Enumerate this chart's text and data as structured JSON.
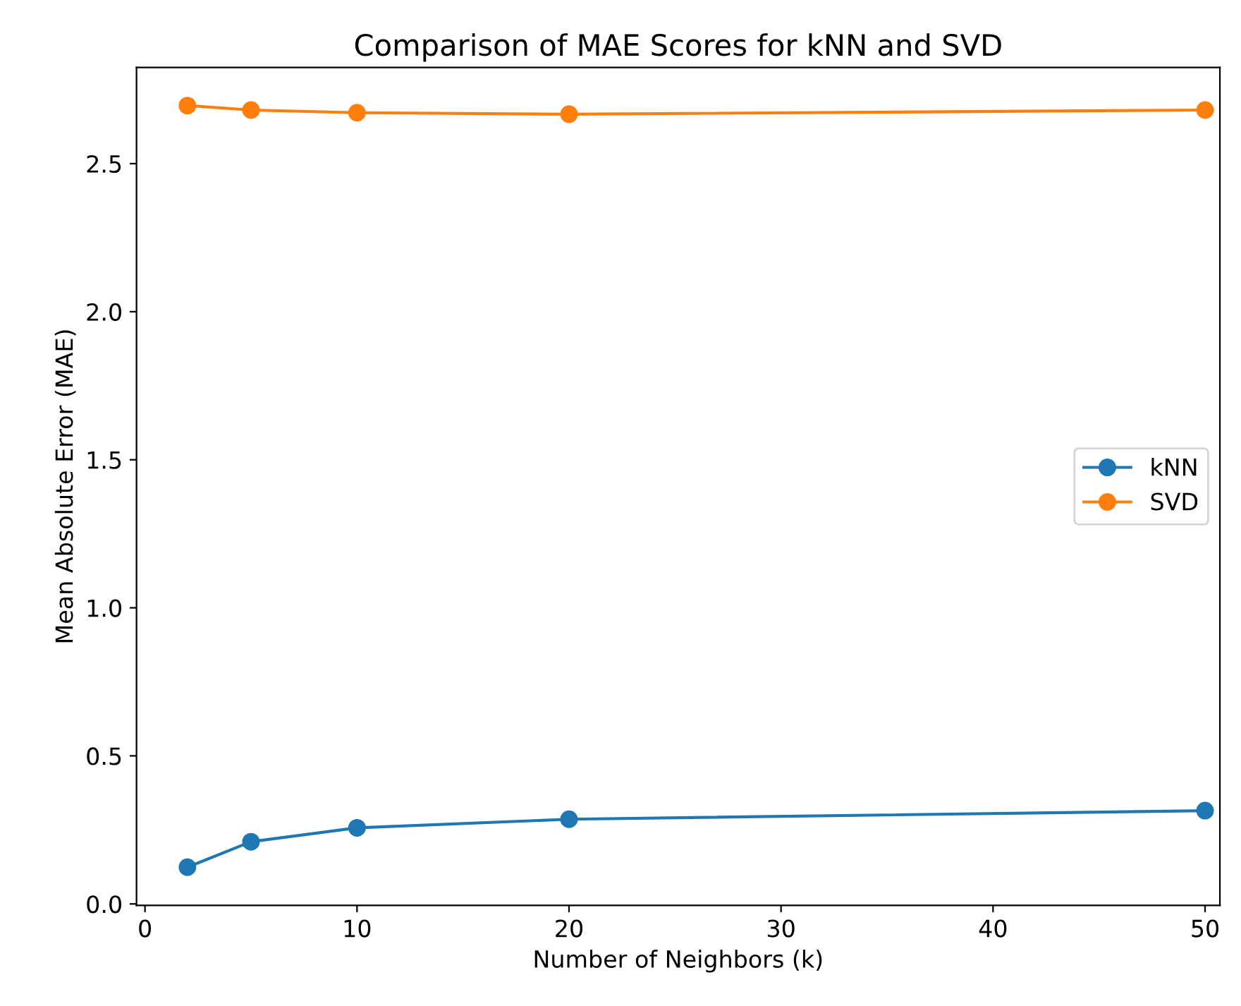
{
  "chart_data": {
    "type": "line",
    "title": "Comparison of MAE Scores for kNN and SVD",
    "xlabel": "Number of Neighbors (k)",
    "ylabel": "Mean Absolute Error (MAE)",
    "x": [
      2,
      5,
      10,
      20,
      50
    ],
    "series": [
      {
        "name": "kNN",
        "color": "#1f77b4",
        "values": [
          0.124,
          0.21,
          0.257,
          0.286,
          0.315
        ]
      },
      {
        "name": "SVD",
        "color": "#ff7f0e",
        "values": [
          2.696,
          2.681,
          2.672,
          2.667,
          2.681
        ]
      }
    ],
    "xlim": [
      -0.4,
      50.7
    ],
    "ylim": [
      -0.005,
      2.825
    ],
    "xticks": [
      0,
      10,
      20,
      30,
      40,
      50
    ],
    "yticks": [
      {
        "value": 0,
        "label": "0.0"
      },
      0.5,
      {
        "value": 1,
        "label": "1.0"
      },
      1.5,
      {
        "value": 2,
        "label": "2.0"
      },
      2.5
    ],
    "marker": "circle",
    "line_style": "solid",
    "legend": "right",
    "grid": false
  }
}
